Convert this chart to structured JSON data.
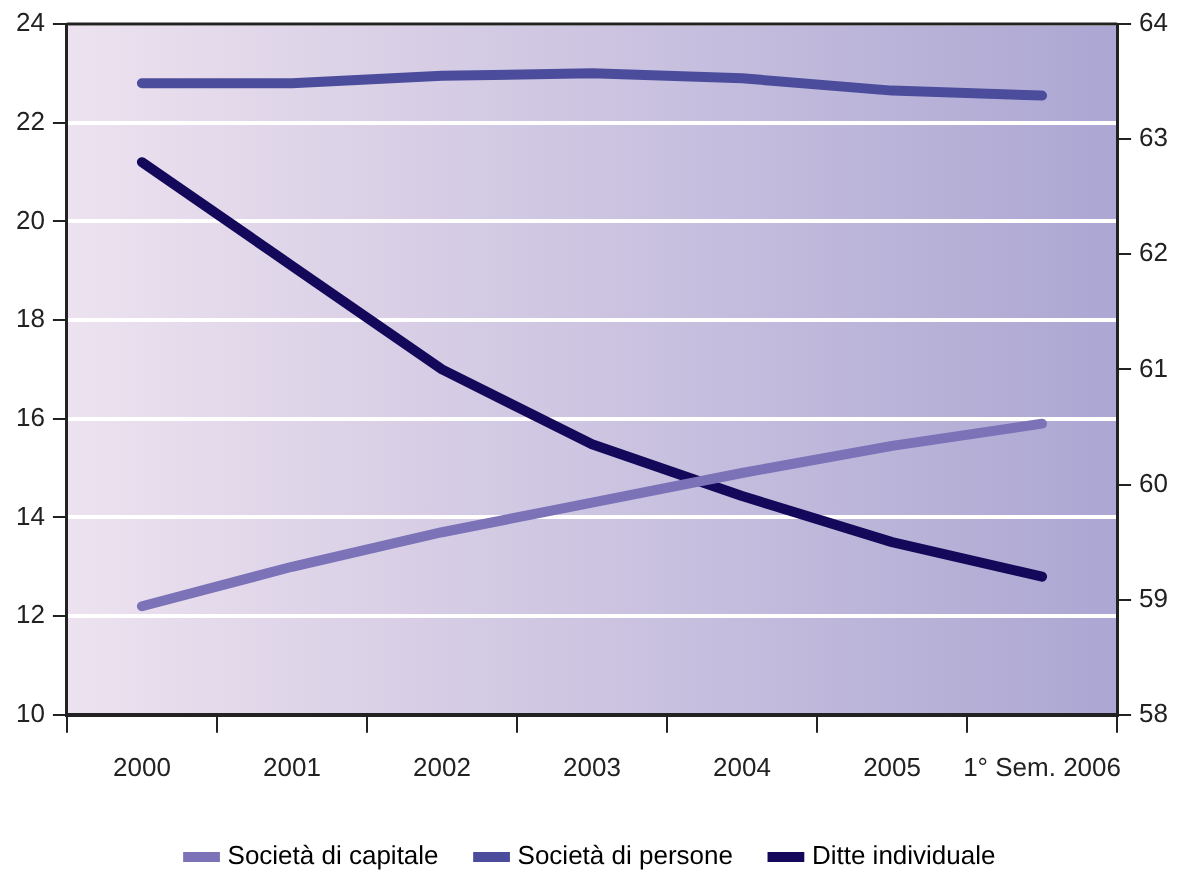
{
  "chart_data": {
    "type": "line",
    "categories": [
      "2000",
      "2001",
      "2002",
      "2003",
      "2004",
      "2005",
      "1° Sem. 2006"
    ],
    "series": [
      {
        "name": "Società di capitale",
        "color": "#7b72b8",
        "values": [
          12.2,
          13.0,
          13.7,
          14.3,
          14.9,
          15.45,
          15.9
        ]
      },
      {
        "name": "Società di persone",
        "color": "#4b4d9c",
        "values": [
          22.8,
          22.8,
          22.95,
          23.0,
          22.9,
          22.65,
          22.55
        ]
      },
      {
        "name": "Ditte individuale",
        "color": "#14085a",
        "axis": "y2",
        "values": [
          62.8,
          61.9,
          61.0,
          60.35,
          59.9,
          59.5,
          59.2
        ]
      }
    ],
    "ylim": [
      10,
      24
    ],
    "yticks": [
      10,
      12,
      14,
      16,
      18,
      20,
      22,
      24
    ],
    "y2lim": [
      58,
      64
    ],
    "y2ticks": [
      58,
      59,
      60,
      61,
      62,
      63,
      64
    ],
    "grid": "y",
    "legend": "bottom",
    "marker": "none",
    "line_style": "solid"
  }
}
